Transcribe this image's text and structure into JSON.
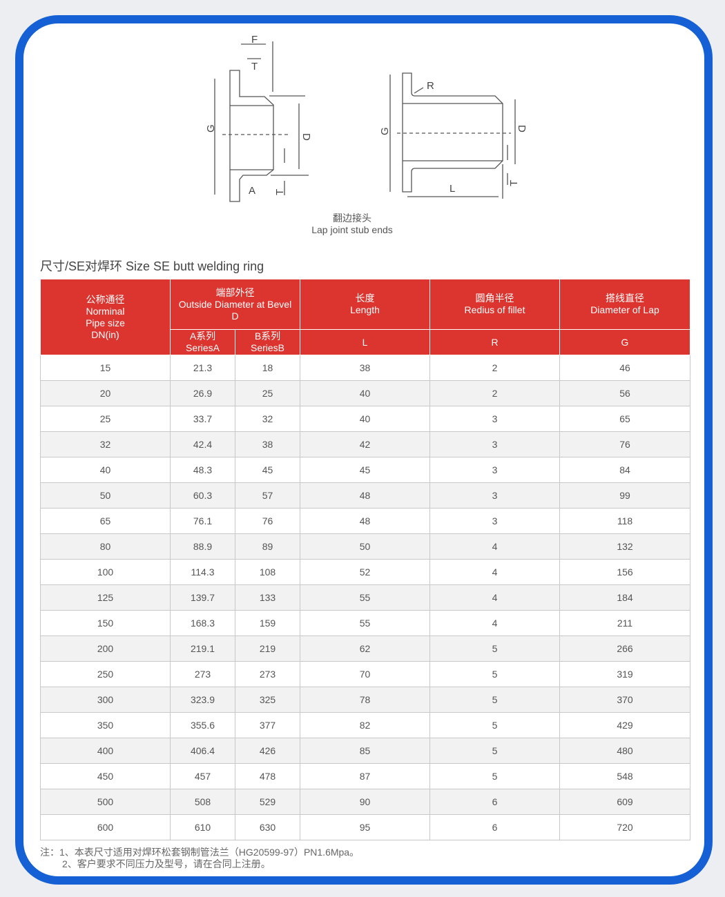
{
  "diagram": {
    "labels": {
      "F": "F",
      "T": "T",
      "G": "G",
      "D": "D",
      "A": "A",
      "R": "R",
      "L": "L"
    },
    "caption_cn": "翻边接头",
    "caption_en": "Lap joint stub ends"
  },
  "section_title": "尺寸/SE对焊环 Size SE butt welding ring",
  "table": {
    "headers": {
      "dn": [
        "公称通径",
        "Norminal",
        "Pipe size",
        "DN(in)"
      ],
      "od": [
        "端部外径",
        "Outside Diameter at Bevel",
        "D"
      ],
      "od_a": [
        "A系列",
        "SeriesA"
      ],
      "od_b": [
        "B系列",
        "SeriesB"
      ],
      "length": [
        "长度",
        "Length"
      ],
      "length_sym": "L",
      "radius": [
        "圆角半径",
        "Redius of fillet"
      ],
      "radius_sym": "R",
      "lap": [
        "搭线直径",
        "Diameter of Lap"
      ],
      "lap_sym": "G"
    },
    "rows": [
      [
        "15",
        "21.3",
        "18",
        "38",
        "2",
        "46"
      ],
      [
        "20",
        "26.9",
        "25",
        "40",
        "2",
        "56"
      ],
      [
        "25",
        "33.7",
        "32",
        "40",
        "3",
        "65"
      ],
      [
        "32",
        "42.4",
        "38",
        "42",
        "3",
        "76"
      ],
      [
        "40",
        "48.3",
        "45",
        "45",
        "3",
        "84"
      ],
      [
        "50",
        "60.3",
        "57",
        "48",
        "3",
        "99"
      ],
      [
        "65",
        "76.1",
        "76",
        "48",
        "3",
        "118"
      ],
      [
        "80",
        "88.9",
        "89",
        "50",
        "4",
        "132"
      ],
      [
        "100",
        "114.3",
        "108",
        "52",
        "4",
        "156"
      ],
      [
        "125",
        "139.7",
        "133",
        "55",
        "4",
        "184"
      ],
      [
        "150",
        "168.3",
        "159",
        "55",
        "4",
        "211"
      ],
      [
        "200",
        "219.1",
        "219",
        "62",
        "5",
        "266"
      ],
      [
        "250",
        "273",
        "273",
        "70",
        "5",
        "319"
      ],
      [
        "300",
        "323.9",
        "325",
        "78",
        "5",
        "370"
      ],
      [
        "350",
        "355.6",
        "377",
        "82",
        "5",
        "429"
      ],
      [
        "400",
        "406.4",
        "426",
        "85",
        "5",
        "480"
      ],
      [
        "450",
        "457",
        "478",
        "87",
        "5",
        "548"
      ],
      [
        "500",
        "508",
        "529",
        "90",
        "6",
        "609"
      ],
      [
        "600",
        "610",
        "630",
        "95",
        "6",
        "720"
      ]
    ]
  },
  "notes": [
    "注：1、本表尺寸适用对焊环松套钢制管法兰（HG20599-97）PN1.6Mpa。",
    "2、客户要求不同压力及型号，请在合同上注册。"
  ],
  "colors": {
    "frame": "#1560d4",
    "header": "#dc3530"
  }
}
